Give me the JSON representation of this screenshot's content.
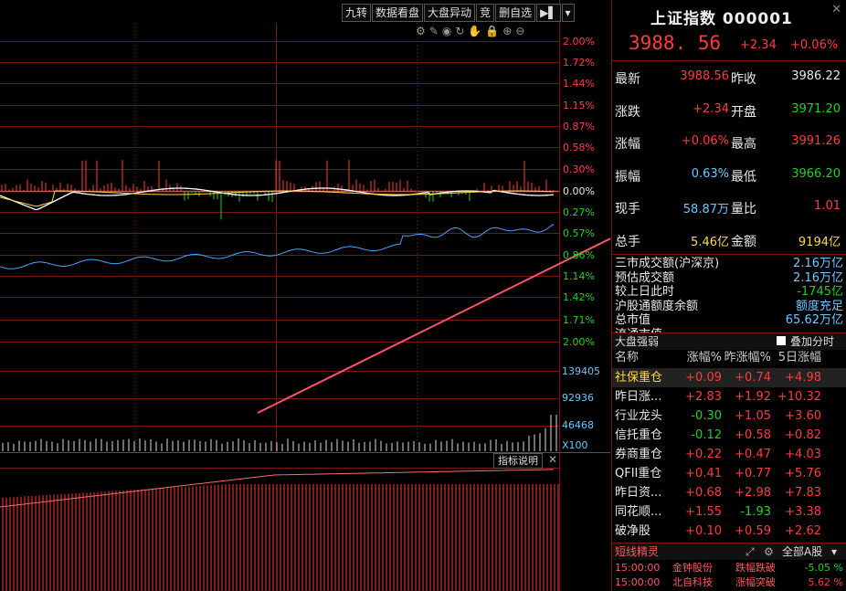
{
  "toolbar": {
    "buttons": [
      "九转",
      "数据看盘",
      "大盘异动",
      "竞",
      "删自选"
    ],
    "play": "▶▌"
  },
  "pct_labels_top": [
    "2.00%",
    "1.72%",
    "1.44%",
    "1.15%",
    "0.87%",
    "0.58%",
    "0.30%",
    "0.00%",
    "0.27%",
    "0.57%",
    "0.86%",
    "1.14%",
    "1.42%",
    "1.71%",
    "2.00%"
  ],
  "volume_labels": [
    "139405",
    "92936",
    "46468",
    "X100"
  ],
  "indicator_title": "指标说明",
  "panel": {
    "title": "上证指数 000001",
    "price": "3988. 56",
    "change": "+2.34",
    "change_pct": "+0.06%",
    "quote_rows": [
      {
        "l1": "最新",
        "v1": "3988.56",
        "c1": "red",
        "l2": "昨收",
        "v2": "3986.22",
        "c2": "white"
      },
      {
        "l1": "涨跌",
        "v1": "+2.34",
        "c1": "red",
        "l2": "开盘",
        "v2": "3971.20",
        "c2": "green"
      },
      {
        "l1": "涨幅",
        "v1": "+0.06%",
        "c1": "red",
        "l2": "最高",
        "v2": "3991.26",
        "c2": "red"
      },
      {
        "l1": "振幅",
        "v1": "0.63%",
        "c1": "cyan",
        "l2": "最低",
        "v2": "3966.20",
        "c2": "green"
      },
      {
        "l1": "现手",
        "v1": "58.87万",
        "c1": "cyan",
        "l2": "量比",
        "v2": "1.01",
        "c2": "red"
      },
      {
        "l1": "总手",
        "v1": "5.46亿",
        "c1": "yellow",
        "l2": "金额",
        "v2": "9194亿",
        "c2": "yellow"
      }
    ],
    "market_rows": [
      {
        "label": "三市成交额(沪深京)",
        "value": "2.16万亿",
        "c": "cyan"
      },
      {
        "label": "预估成交额",
        "value": "2.16万亿",
        "c": "cyan"
      },
      {
        "label": "较上日此时",
        "value": "-1745亿",
        "c": "green"
      },
      {
        "label": "沪股通额度余额",
        "value": "额度充足",
        "c": "cyan"
      },
      {
        "label": "总市值",
        "value": "65.62万亿",
        "c": "cyan"
      },
      {
        "label": "流通市值",
        "value": "",
        "c": "cyan"
      }
    ],
    "section_title": "大盘强弱",
    "overlay_label": "叠加分时",
    "table_header": [
      "名称",
      "涨幅%",
      "昨涨幅%",
      "5日涨幅"
    ],
    "table_rows": [
      {
        "name": "社保重仓",
        "a": "+0.09",
        "b": "+0.74",
        "c": "+4.98",
        "ca": "red",
        "cb": "red",
        "cc": "red",
        "sel": true,
        "nc": "yellow"
      },
      {
        "name": "昨日涨...",
        "a": "+2.83",
        "b": "+1.92",
        "c": "+10.32",
        "ca": "red",
        "cb": "red",
        "cc": "red",
        "sel": false,
        "nc": "white"
      },
      {
        "name": "行业龙头",
        "a": "-0.30",
        "b": "+1.05",
        "c": "+3.60",
        "ca": "green",
        "cb": "red",
        "cc": "red",
        "sel": false,
        "nc": "white"
      },
      {
        "name": "信托重仓",
        "a": "-0.12",
        "b": "+0.58",
        "c": "+0.82",
        "ca": "green",
        "cb": "red",
        "cc": "red",
        "sel": false,
        "nc": "white"
      },
      {
        "name": "券商重仓",
        "a": "+0.22",
        "b": "+0.47",
        "c": "+4.03",
        "ca": "red",
        "cb": "red",
        "cc": "red",
        "sel": false,
        "nc": "white"
      },
      {
        "name": "QFII重仓",
        "a": "+0.41",
        "b": "+0.77",
        "c": "+5.76",
        "ca": "red",
        "cb": "red",
        "cc": "red",
        "sel": false,
        "nc": "white"
      },
      {
        "name": "昨日资...",
        "a": "+0.68",
        "b": "+2.98",
        "c": "+7.83",
        "ca": "red",
        "cb": "red",
        "cc": "red",
        "sel": false,
        "nc": "white"
      },
      {
        "name": "同花顺...",
        "a": "+1.55",
        "b": "-1.93",
        "c": "+3.38",
        "ca": "red",
        "cb": "green",
        "cc": "red",
        "sel": false,
        "nc": "white"
      },
      {
        "name": "破净股",
        "a": "+0.10",
        "b": "+0.59",
        "c": "+2.62",
        "ca": "red",
        "cb": "red",
        "cc": "red",
        "sel": false,
        "nc": "white"
      }
    ],
    "footer_title": "短线精灵",
    "footer_select": "全部A股",
    "news": [
      {
        "time": "15:00:00",
        "stock": "金钟股份",
        "event": "跌幅跌破",
        "value": "-5.05 %",
        "vc": "green"
      },
      {
        "time": "15:00:00",
        "stock": "北自科技",
        "event": "涨幅突破",
        "value": "5.62 %",
        "vc": "red"
      }
    ]
  },
  "colors": {
    "up": "#ff3b3b",
    "down": "#1fd21f",
    "grid": "#7a1414",
    "price_line": "#ffffff",
    "avg_line": "#ffd84a",
    "lower_line": "#4aa3ff"
  }
}
